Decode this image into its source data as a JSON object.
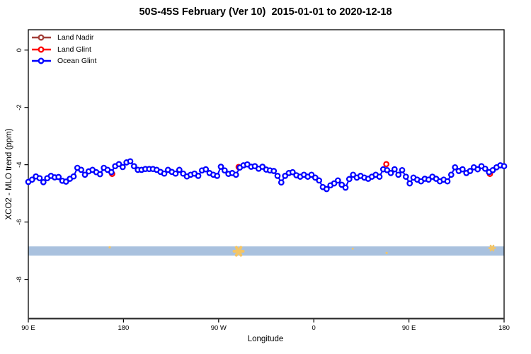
{
  "chart_data": {
    "type": "line",
    "title": "50S-45S February (Ver 10)  2015-01-01 to 2020-12-18",
    "xlabel": "Longitude",
    "ylabel": "XCO2 - MLO trend (ppm)",
    "x_axis": {
      "min": 90,
      "max": 540,
      "unit": "degrees longitude, unwrapped eastward from 90E across the dateline",
      "ticks": [
        {
          "pos": 90,
          "label": "90 E"
        },
        {
          "pos": 180,
          "label": "180"
        },
        {
          "pos": 270,
          "label": "90 W"
        },
        {
          "pos": 360,
          "label": "0"
        },
        {
          "pos": 450,
          "label": "90 E"
        },
        {
          "pos": 540,
          "label": "180"
        }
      ]
    },
    "y_axis": {
      "min": -9.37,
      "max": 0.71,
      "ticks": [
        {
          "pos": 0,
          "label": "0"
        },
        {
          "pos": -2,
          "label": "-2"
        },
        {
          "pos": -4,
          "label": "-4"
        },
        {
          "pos": -6,
          "label": "-6"
        },
        {
          "pos": -8,
          "label": "-8"
        }
      ]
    },
    "legend": {
      "position": "top-left",
      "items": [
        {
          "label": "Land Nadir",
          "color": "#A3403A"
        },
        {
          "label": "Land Glint",
          "color": "#FF0000"
        },
        {
          "label": "Ocean Glint",
          "color": "#0000FF"
        }
      ]
    },
    "series": [
      {
        "name": "Land Nadir",
        "color": "#A3403A",
        "points": []
      },
      {
        "name": "Land Glint",
        "color": "#FF0000",
        "points": [
          [
            169.3,
            -4.32
          ],
          [
            288.9,
            -4.08
          ],
          [
            428.6,
            -3.98
          ],
          [
            526.6,
            -4.32
          ]
        ]
      },
      {
        "name": "Ocean Glint",
        "color": "#0000FF",
        "line": true,
        "x_start": 90,
        "x_step": 3.5714,
        "values": [
          -4.6,
          -4.52,
          -4.41,
          -4.47,
          -4.61,
          -4.47,
          -4.39,
          -4.44,
          -4.43,
          -4.56,
          -4.59,
          -4.49,
          -4.41,
          -4.11,
          -4.18,
          -4.35,
          -4.23,
          -4.18,
          -4.26,
          -4.33,
          -4.11,
          -4.18,
          -4.26,
          -4.05,
          -3.98,
          -4.08,
          -3.92,
          -3.88,
          -4.05,
          -4.18,
          -4.18,
          -4.15,
          -4.15,
          -4.15,
          -4.18,
          -4.25,
          -4.31,
          -4.18,
          -4.25,
          -4.31,
          -4.18,
          -4.31,
          -4.41,
          -4.35,
          -4.31,
          -4.39,
          -4.2,
          -4.16,
          -4.29,
          -4.35,
          -4.39,
          -4.07,
          -4.2,
          -4.32,
          -4.29,
          -4.35,
          -4.1,
          -4.02,
          -3.99,
          -4.07,
          -4.05,
          -4.14,
          -4.07,
          -4.17,
          -4.2,
          -4.22,
          -4.39,
          -4.62,
          -4.39,
          -4.29,
          -4.26,
          -4.37,
          -4.42,
          -4.35,
          -4.42,
          -4.35,
          -4.45,
          -4.55,
          -4.78,
          -4.85,
          -4.72,
          -4.65,
          -4.55,
          -4.7,
          -4.8,
          -4.5,
          -4.35,
          -4.45,
          -4.39,
          -4.45,
          -4.49,
          -4.42,
          -4.35,
          -4.42,
          -4.16,
          -4.19,
          -4.29,
          -4.16,
          -4.35,
          -4.19,
          -4.42,
          -4.65,
          -4.45,
          -4.52,
          -4.58,
          -4.49,
          -4.52,
          -4.42,
          -4.49,
          -4.58,
          -4.52,
          -4.58,
          -4.35,
          -4.09,
          -4.22,
          -4.16,
          -4.29,
          -4.22,
          -4.09,
          -4.16,
          -4.05,
          -4.14,
          -4.26,
          -4.19,
          -4.09,
          -4.02,
          -4.05
        ]
      }
    ],
    "band": {
      "value_top": -6.85,
      "value_bottom": -7.17,
      "color": "#A9C1DE",
      "marker_color": "#F3C566",
      "markers": [
        {
          "lon": 167.0,
          "value": -6.88,
          "size": 4
        },
        {
          "lon": 288.9,
          "value": -7.02,
          "size": 13
        },
        {
          "lon": 396.8,
          "value": -6.93,
          "size": 3
        },
        {
          "lon": 428.9,
          "value": -7.08,
          "size": 4
        },
        {
          "lon": 528.6,
          "value": -6.91,
          "size": 8
        }
      ]
    }
  }
}
